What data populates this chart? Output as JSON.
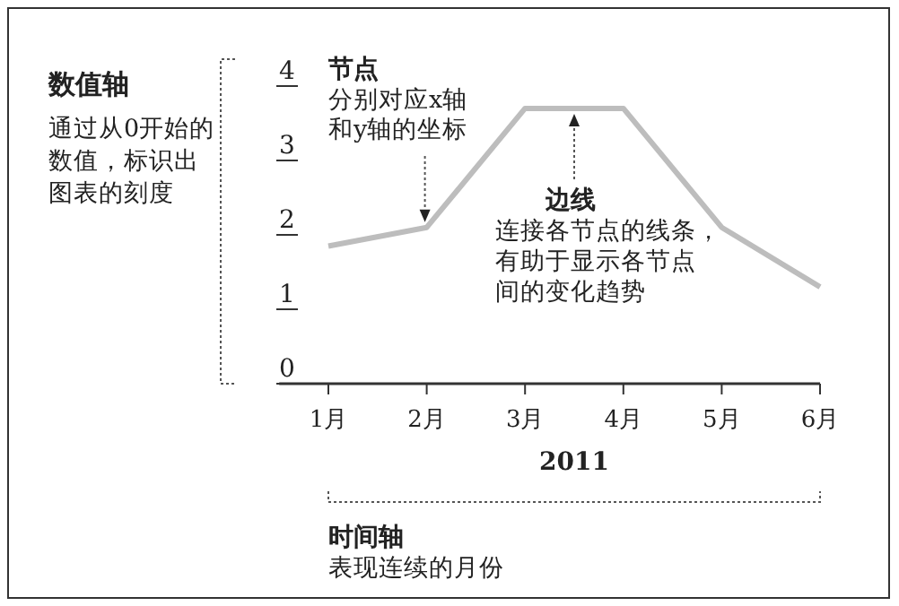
{
  "chart_data": {
    "type": "line",
    "xlabel": "2011",
    "categories": [
      "1月",
      "2月",
      "3月",
      "4月",
      "5月",
      "6月"
    ],
    "series": [
      {
        "color": "#bdbdbd",
        "values": [
          1.85,
          2.1,
          3.7,
          3.7,
          2.1,
          1.3
        ]
      }
    ],
    "ylim": [
      0,
      4
    ],
    "yticks": [
      0,
      1,
      2,
      3,
      4
    ],
    "marker": "none",
    "line_style": "solid",
    "annotations": [
      "数值轴",
      "通过从0开始的数值，标识出图表的刻度",
      "节点",
      "分别对应x轴和y轴的坐标",
      "边线",
      "连接各节点的线条，有助于显示各节点间的变化趋势",
      "时间轴",
      "表现连续的月份"
    ]
  }
}
